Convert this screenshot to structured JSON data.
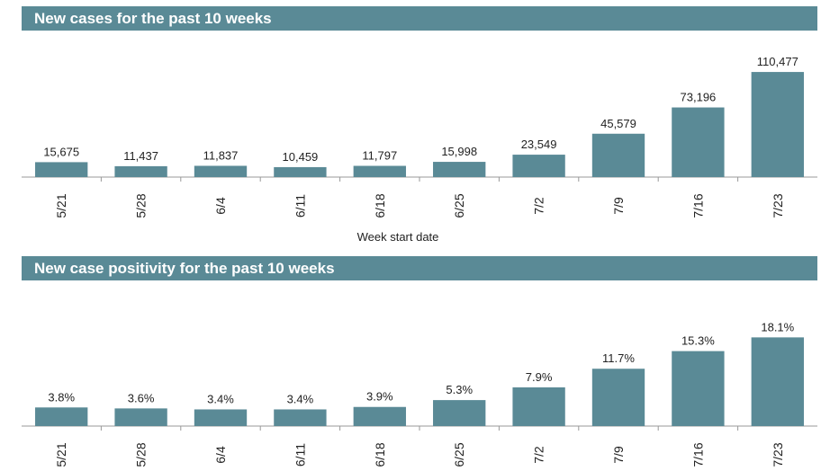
{
  "colors": {
    "bar": "#5a8a96",
    "banner": "#5a8a96",
    "axis": "#999999",
    "text": "#222222"
  },
  "chart_data": [
    {
      "type": "bar",
      "title": "New cases for the past 10 weeks",
      "xlabel": "Week start date",
      "ylabel": "",
      "categories": [
        "5/21",
        "5/28",
        "6/4",
        "6/11",
        "6/18",
        "6/25",
        "7/2",
        "7/9",
        "7/16",
        "7/23"
      ],
      "values": [
        15675,
        11437,
        11837,
        10459,
        11797,
        15998,
        23549,
        45579,
        73196,
        110477
      ],
      "value_labels": [
        "15,675",
        "11,437",
        "11,837",
        "10,459",
        "11,797",
        "15,998",
        "23,549",
        "45,579",
        "73,196",
        "110,477"
      ],
      "ylim": [
        0,
        120000
      ],
      "grid": false
    },
    {
      "type": "bar",
      "title": "New case positivity for the past 10 weeks",
      "xlabel": "",
      "ylabel": "",
      "categories": [
        "5/21",
        "5/28",
        "6/4",
        "6/11",
        "6/18",
        "6/25",
        "7/2",
        "7/9",
        "7/16",
        "7/23"
      ],
      "values": [
        3.8,
        3.6,
        3.4,
        3.4,
        3.9,
        5.3,
        7.9,
        11.7,
        15.3,
        18.1
      ],
      "value_labels": [
        "3.8%",
        "3.6%",
        "3.4%",
        "3.4%",
        "3.9%",
        "5.3%",
        "7.9%",
        "11.7%",
        "15.3%",
        "18.1%"
      ],
      "ylim": [
        0,
        20
      ],
      "grid": false
    }
  ]
}
